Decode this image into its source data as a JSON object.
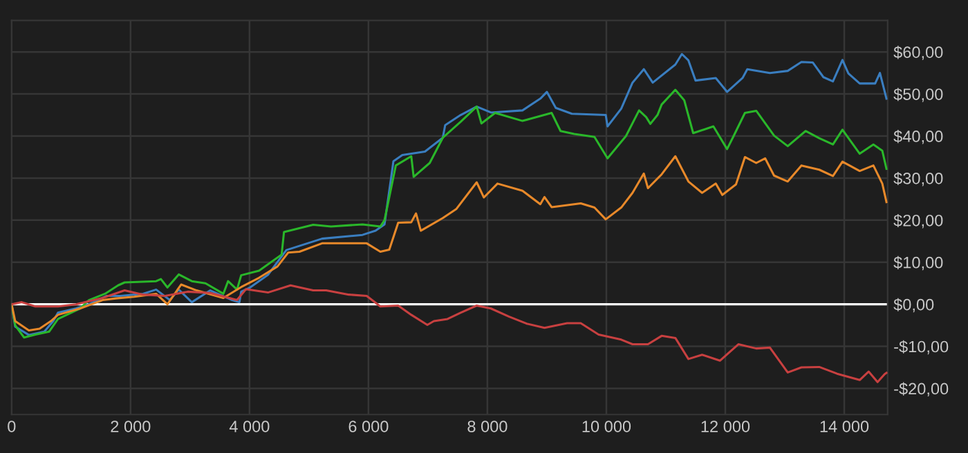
{
  "chart_data": {
    "type": "line",
    "xlim": [
      0,
      14730
    ],
    "ylim": [
      -26.2,
      67.5
    ],
    "xticks": [
      0,
      {
        "value": 2000,
        "label": "2 000"
      },
      {
        "value": 4000,
        "label": "4 000"
      },
      {
        "value": 6000,
        "label": "6 000"
      },
      {
        "value": 8000,
        "label": "8 000"
      },
      {
        "value": 10000,
        "label": "10 000"
      },
      {
        "value": 12000,
        "label": "12 000"
      },
      {
        "value": 14000,
        "label": "14 000"
      }
    ],
    "yticks": [
      {
        "value": -20,
        "label": "-$20,00"
      },
      {
        "value": -10,
        "label": "-$10,00"
      },
      {
        "value": 0,
        "label": "$0,00"
      },
      {
        "value": 10,
        "label": "$10,00"
      },
      {
        "value": 20,
        "label": "$20,00"
      },
      {
        "value": 30,
        "label": "$30,00"
      },
      {
        "value": 40,
        "label": "$40,00"
      },
      {
        "value": 50,
        "label": "$50,00"
      },
      {
        "value": 60,
        "label": "$60,00"
      }
    ],
    "grid": true,
    "ref_lines": [
      {
        "axis": "y",
        "value": 0,
        "color": "#ffffff"
      }
    ],
    "series": [
      {
        "color": "#3a7ec0",
        "x": [
          0,
          60,
          290,
          550,
          700,
          780,
          1080,
          1300,
          1600,
          1830,
          2210,
          2430,
          2660,
          2810,
          3030,
          3340,
          3710,
          3830,
          3860,
          4010,
          4310,
          4620,
          5220,
          5900,
          6120,
          6270,
          6420,
          6570,
          6950,
          7250,
          7290,
          7550,
          7820,
          8060,
          8590,
          8890,
          9000,
          9150,
          9420,
          9990,
          10020,
          10250,
          10440,
          10630,
          10780,
          11160,
          11270,
          11380,
          11500,
          11840,
          12030,
          12290,
          12370,
          12750,
          13050,
          13280,
          13470,
          13650,
          13810,
          13970,
          14070,
          14260,
          14520,
          14600,
          14710
        ],
        "values": [
          0,
          -5.3,
          -7.3,
          -6.5,
          -4,
          -2,
          -1,
          0,
          2,
          2,
          2.5,
          3.5,
          1,
          3.5,
          0.5,
          3.3,
          1,
          0.5,
          3,
          4,
          7,
          12.9,
          15.6,
          16.5,
          17.5,
          19,
          34,
          35.5,
          36.3,
          39.6,
          42.6,
          45,
          47,
          45.6,
          46.1,
          48.9,
          50.5,
          46.7,
          45.3,
          45,
          42.3,
          46.5,
          52.7,
          55.9,
          52.7,
          57,
          59.5,
          58,
          53.2,
          53.8,
          50.5,
          53.8,
          55.9,
          55,
          55.5,
          57.6,
          57.5,
          54,
          53,
          58.1,
          54.9,
          52.5,
          52.5,
          55,
          48.9
        ]
      },
      {
        "color": "#2ab72a",
        "x": [
          0,
          60,
          210,
          400,
          630,
          780,
          1150,
          1300,
          1570,
          1790,
          1900,
          2430,
          2510,
          2620,
          2810,
          3030,
          3260,
          3560,
          3640,
          3790,
          3860,
          4160,
          4540,
          4580,
          5070,
          5370,
          5900,
          6200,
          6270,
          6460,
          6720,
          6760,
          7030,
          7250,
          7550,
          7820,
          7900,
          8130,
          8590,
          9080,
          9230,
          9460,
          9800,
          10020,
          10330,
          10550,
          10670,
          10740,
          10860,
          10930,
          11160,
          11310,
          11460,
          11800,
          12030,
          12140,
          12330,
          12520,
          12820,
          13050,
          13350,
          13580,
          13810,
          13970,
          14260,
          14490,
          14640,
          14710
        ],
        "values": [
          0,
          -5,
          -7.9,
          -7.2,
          -6.5,
          -3.5,
          -1,
          1,
          2.5,
          4.5,
          5.2,
          5.5,
          6,
          4,
          7.1,
          5.5,
          5,
          2.5,
          5.5,
          3.5,
          6.9,
          8,
          11.8,
          17.2,
          18.9,
          18.5,
          19,
          18.5,
          20,
          33,
          35.2,
          30.3,
          33.6,
          39.6,
          43.4,
          47,
          43,
          45.5,
          43.6,
          45.5,
          41.2,
          40.5,
          39.8,
          34.7,
          40,
          46.1,
          44.5,
          42.9,
          45,
          47.5,
          51,
          48.5,
          40.7,
          42.3,
          36.9,
          40,
          45.5,
          46,
          40.1,
          37.6,
          41.2,
          39.5,
          38,
          41.5,
          35.8,
          38,
          36.5,
          32.2
        ]
      },
      {
        "color": "#e8892a",
        "x": [
          0,
          60,
          290,
          470,
          660,
          780,
          1150,
          1530,
          1750,
          2060,
          2430,
          2620,
          2850,
          3110,
          3560,
          3860,
          4160,
          4470,
          4650,
          4840,
          5220,
          5670,
          5970,
          6200,
          6350,
          6500,
          6720,
          6800,
          6880,
          7250,
          7480,
          7820,
          7940,
          8170,
          8590,
          8890,
          8960,
          9080,
          9570,
          9800,
          9990,
          10250,
          10440,
          10630,
          10700,
          10930,
          11160,
          11380,
          11610,
          11840,
          11950,
          12180,
          12330,
          12520,
          12670,
          12820,
          13050,
          13280,
          13580,
          13810,
          13970,
          14260,
          14490,
          14640,
          14710
        ],
        "values": [
          0,
          -4,
          -6.2,
          -5.8,
          -4,
          -2.5,
          -1,
          1,
          1.4,
          1.8,
          2.5,
          0,
          4.7,
          3.3,
          1.5,
          4.1,
          6.3,
          9,
          12.3,
          12.5,
          14.5,
          14.5,
          14.5,
          12.5,
          13,
          19.4,
          19.5,
          21.6,
          17.5,
          20.5,
          22.7,
          29,
          25.4,
          28.7,
          27,
          23.8,
          25.5,
          23.1,
          24,
          23,
          20.2,
          23,
          26.5,
          31.1,
          27.6,
          30.9,
          35.2,
          29.2,
          26.5,
          28.7,
          26,
          28.5,
          35,
          33.6,
          34.7,
          30.6,
          29.2,
          33,
          32,
          30.5,
          33.9,
          31.7,
          33,
          28.7,
          24.3
        ]
      },
      {
        "color": "#c84040",
        "x": [
          0,
          170,
          400,
          780,
          1080,
          1530,
          1900,
          2210,
          2580,
          2960,
          3340,
          3790,
          3940,
          4310,
          4690,
          5070,
          5290,
          5670,
          5970,
          6200,
          6500,
          6720,
          6990,
          7100,
          7330,
          7550,
          7820,
          8060,
          8360,
          8660,
          8960,
          9340,
          9570,
          9870,
          10250,
          10440,
          10700,
          10930,
          11160,
          11380,
          11610,
          11910,
          12220,
          12520,
          12750,
          13050,
          13280,
          13580,
          13880,
          14260,
          14410,
          14560,
          14680,
          14710
        ],
        "values": [
          0,
          0.5,
          -0.5,
          -0.5,
          0,
          1.5,
          3.3,
          2.3,
          2,
          3,
          2.7,
          1,
          3.6,
          2.8,
          4.5,
          3.3,
          3.3,
          2.3,
          2,
          -0.5,
          -0.3,
          -2.5,
          -4.9,
          -4,
          -3.5,
          -2,
          -0.3,
          -1,
          -2.9,
          -4.6,
          -5.6,
          -4.5,
          -4.5,
          -7.2,
          -8.4,
          -9.5,
          -9.5,
          -7.5,
          -8,
          -13,
          -12,
          -13.4,
          -9.5,
          -10.5,
          -10.3,
          -16.2,
          -15,
          -14.9,
          -16.5,
          -18,
          -16,
          -18.5,
          -16.6,
          -16.3
        ]
      }
    ]
  }
}
